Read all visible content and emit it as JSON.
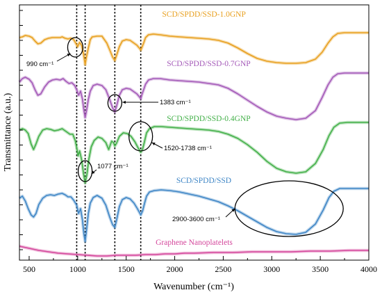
{
  "chart_data": {
    "type": "line",
    "title": "",
    "xlabel": "Wavenumber (cm⁻¹)",
    "ylabel": "Transmittance (a.u.)",
    "xlim": [
      400,
      4000
    ],
    "x_ticks": [
      "500",
      "1000",
      "1500",
      "2000",
      "2500",
      "3000",
      "3500",
      "4000"
    ],
    "grid": false,
    "reference_lines_x": [
      990,
      1077,
      1383,
      1650
    ],
    "series": [
      {
        "name": "SCD/SPDD/SSD-1.0GNP",
        "color": "#E8A020",
        "points": [
          [
            400,
            47
          ],
          [
            430,
            46
          ],
          [
            460,
            44
          ],
          [
            500,
            45
          ],
          [
            530,
            47
          ],
          [
            560,
            52
          ],
          [
            590,
            56
          ],
          [
            620,
            55
          ],
          [
            660,
            50
          ],
          [
            700,
            48
          ],
          [
            740,
            47
          ],
          [
            780,
            47
          ],
          [
            820,
            47
          ],
          [
            840,
            46
          ],
          [
            870,
            48
          ],
          [
            900,
            49
          ],
          [
            930,
            48
          ],
          [
            960,
            50
          ],
          [
            980,
            55
          ],
          [
            1000,
            60
          ],
          [
            1020,
            54
          ],
          [
            1040,
            58
          ],
          [
            1060,
            70
          ],
          [
            1077,
            86
          ],
          [
            1090,
            75
          ],
          [
            1110,
            62
          ],
          [
            1130,
            50
          ],
          [
            1150,
            46
          ],
          [
            1200,
            45
          ],
          [
            1250,
            45
          ],
          [
            1300,
            55
          ],
          [
            1340,
            68
          ],
          [
            1360,
            75
          ],
          [
            1383,
            80
          ],
          [
            1400,
            73
          ],
          [
            1430,
            60
          ],
          [
            1460,
            52
          ],
          [
            1500,
            50
          ],
          [
            1540,
            51
          ],
          [
            1580,
            55
          ],
          [
            1610,
            58
          ],
          [
            1640,
            63
          ],
          [
            1650,
            65
          ],
          [
            1660,
            62
          ],
          [
            1680,
            55
          ],
          [
            1700,
            47
          ],
          [
            1730,
            43
          ],
          [
            1780,
            42
          ],
          [
            1850,
            43
          ],
          [
            1950,
            45
          ],
          [
            2050,
            46
          ],
          [
            2150,
            47
          ],
          [
            2250,
            48
          ],
          [
            2350,
            49
          ],
          [
            2450,
            51
          ],
          [
            2550,
            55
          ],
          [
            2650,
            62
          ],
          [
            2750,
            70
          ],
          [
            2850,
            77
          ],
          [
            2950,
            81
          ],
          [
            3050,
            83
          ],
          [
            3150,
            84
          ],
          [
            3250,
            84
          ],
          [
            3350,
            83
          ],
          [
            3450,
            78
          ],
          [
            3520,
            68
          ],
          [
            3580,
            55
          ],
          [
            3630,
            46
          ],
          [
            3680,
            41
          ],
          [
            3750,
            40
          ],
          [
            3850,
            40
          ],
          [
            3950,
            40
          ],
          [
            4000,
            40
          ]
        ]
      },
      {
        "name": "SCD/SPDD/SSD-0.7GNP",
        "color": "#A45AB8",
        "points": [
          [
            400,
            111
          ],
          [
            430,
            106
          ],
          [
            460,
            104
          ],
          [
            500,
            107
          ],
          [
            530,
            112
          ],
          [
            560,
            122
          ],
          [
            590,
            130
          ],
          [
            620,
            128
          ],
          [
            660,
            118
          ],
          [
            700,
            111
          ],
          [
            740,
            108
          ],
          [
            780,
            107
          ],
          [
            820,
            108
          ],
          [
            850,
            106
          ],
          [
            880,
            110
          ],
          [
            910,
            113
          ],
          [
            940,
            112
          ],
          [
            970,
            116
          ],
          [
            990,
            122
          ],
          [
            1010,
            130
          ],
          [
            1030,
            124
          ],
          [
            1050,
            136
          ],
          [
            1065,
            152
          ],
          [
            1077,
            162
          ],
          [
            1090,
            153
          ],
          [
            1110,
            136
          ],
          [
            1130,
            124
          ],
          [
            1160,
            116
          ],
          [
            1200,
            114
          ],
          [
            1250,
            116
          ],
          [
            1290,
            122
          ],
          [
            1330,
            136
          ],
          [
            1360,
            148
          ],
          [
            1383,
            154
          ],
          [
            1400,
            146
          ],
          [
            1430,
            130
          ],
          [
            1460,
            122
          ],
          [
            1500,
            120
          ],
          [
            1540,
            121
          ],
          [
            1580,
            125
          ],
          [
            1610,
            128
          ],
          [
            1640,
            133
          ],
          [
            1650,
            135
          ],
          [
            1660,
            130
          ],
          [
            1680,
            122
          ],
          [
            1700,
            114
          ],
          [
            1730,
            108
          ],
          [
            1780,
            106
          ],
          [
            1850,
            106
          ],
          [
            1950,
            108
          ],
          [
            2050,
            109
          ],
          [
            2150,
            110
          ],
          [
            2250,
            111
          ],
          [
            2350,
            113
          ],
          [
            2450,
            115
          ],
          [
            2550,
            120
          ],
          [
            2650,
            128
          ],
          [
            2750,
            137
          ],
          [
            2850,
            146
          ],
          [
            2950,
            154
          ],
          [
            3050,
            160
          ],
          [
            3150,
            163
          ],
          [
            3250,
            165
          ],
          [
            3350,
            163
          ],
          [
            3450,
            152
          ],
          [
            3520,
            133
          ],
          [
            3580,
            115
          ],
          [
            3630,
            104
          ],
          [
            3680,
            99
          ],
          [
            3750,
            98
          ],
          [
            3850,
            98
          ],
          [
            3950,
            98
          ],
          [
            4000,
            98
          ]
        ]
      },
      {
        "name": "SCD/SPDD/SSD-0.4GNP",
        "color": "#43B049",
        "points": [
          [
            400,
            180
          ],
          [
            430,
            178
          ],
          [
            460,
            180
          ],
          [
            490,
            185
          ],
          [
            520,
            200
          ],
          [
            545,
            208
          ],
          [
            570,
            200
          ],
          [
            600,
            189
          ],
          [
            640,
            180
          ],
          [
            680,
            178
          ],
          [
            720,
            179
          ],
          [
            760,
            181
          ],
          [
            800,
            180
          ],
          [
            840,
            178
          ],
          [
            880,
            182
          ],
          [
            920,
            186
          ],
          [
            950,
            186
          ],
          [
            975,
            195
          ],
          [
            990,
            205
          ],
          [
            1005,
            217
          ],
          [
            1020,
            210
          ],
          [
            1040,
            222
          ],
          [
            1060,
            242
          ],
          [
            1077,
            256
          ],
          [
            1095,
            244
          ],
          [
            1115,
            222
          ],
          [
            1140,
            204
          ],
          [
            1170,
            195
          ],
          [
            1210,
            190
          ],
          [
            1250,
            192
          ],
          [
            1290,
            198
          ],
          [
            1320,
            208
          ],
          [
            1350,
            196
          ],
          [
            1370,
            198
          ],
          [
            1383,
            203
          ],
          [
            1400,
            199
          ],
          [
            1430,
            189
          ],
          [
            1470,
            184
          ],
          [
            1510,
            185
          ],
          [
            1550,
            189
          ],
          [
            1590,
            197
          ],
          [
            1620,
            205
          ],
          [
            1650,
            212
          ],
          [
            1670,
            207
          ],
          [
            1690,
            196
          ],
          [
            1710,
            184
          ],
          [
            1740,
            178
          ],
          [
            1790,
            175
          ],
          [
            1860,
            175
          ],
          [
            1950,
            176
          ],
          [
            2050,
            177
          ],
          [
            2150,
            178
          ],
          [
            2250,
            179
          ],
          [
            2350,
            180
          ],
          [
            2450,
            182
          ],
          [
            2550,
            186
          ],
          [
            2650,
            192
          ],
          [
            2750,
            201
          ],
          [
            2850,
            212
          ],
          [
            2950,
            225
          ],
          [
            3050,
            235
          ],
          [
            3150,
            240
          ],
          [
            3250,
            242
          ],
          [
            3350,
            240
          ],
          [
            3450,
            228
          ],
          [
            3530,
            208
          ],
          [
            3590,
            188
          ],
          [
            3640,
            176
          ],
          [
            3700,
            170
          ],
          [
            3780,
            169
          ],
          [
            3880,
            169
          ],
          [
            4000,
            169
          ]
        ]
      },
      {
        "name": "SCD/SPDD/SSD",
        "color": "#3F86C6",
        "points": [
          [
            400,
            278
          ],
          [
            430,
            275
          ],
          [
            460,
            282
          ],
          [
            490,
            293
          ],
          [
            520,
            302
          ],
          [
            545,
            305
          ],
          [
            570,
            300
          ],
          [
            600,
            287
          ],
          [
            640,
            278
          ],
          [
            680,
            274
          ],
          [
            720,
            273
          ],
          [
            760,
            274
          ],
          [
            800,
            272
          ],
          [
            840,
            271
          ],
          [
            870,
            273
          ],
          [
            900,
            276
          ],
          [
            930,
            276
          ],
          [
            960,
            281
          ],
          [
            990,
            288
          ],
          [
            1010,
            300
          ],
          [
            1030,
            293
          ],
          [
            1050,
            310
          ],
          [
            1065,
            330
          ],
          [
            1077,
            340
          ],
          [
            1090,
            325
          ],
          [
            1110,
            300
          ],
          [
            1130,
            285
          ],
          [
            1160,
            277
          ],
          [
            1200,
            274
          ],
          [
            1250,
            278
          ],
          [
            1290,
            288
          ],
          [
            1330,
            305
          ],
          [
            1360,
            316
          ],
          [
            1383,
            320
          ],
          [
            1400,
            310
          ],
          [
            1430,
            290
          ],
          [
            1460,
            280
          ],
          [
            1500,
            277
          ],
          [
            1540,
            279
          ],
          [
            1580,
            285
          ],
          [
            1615,
            293
          ],
          [
            1650,
            302
          ],
          [
            1670,
            296
          ],
          [
            1690,
            285
          ],
          [
            1710,
            275
          ],
          [
            1740,
            269
          ],
          [
            1790,
            267
          ],
          [
            1860,
            266
          ],
          [
            1950,
            267
          ],
          [
            2050,
            269
          ],
          [
            2150,
            272
          ],
          [
            2250,
            275
          ],
          [
            2350,
            279
          ],
          [
            2450,
            283
          ],
          [
            2550,
            289
          ],
          [
            2650,
            296
          ],
          [
            2750,
            304
          ],
          [
            2850,
            312
          ],
          [
            2950,
            320
          ],
          [
            3050,
            326
          ],
          [
            3150,
            329
          ],
          [
            3250,
            330
          ],
          [
            3350,
            327
          ],
          [
            3450,
            315
          ],
          [
            3530,
            295
          ],
          [
            3590,
            277
          ],
          [
            3640,
            268
          ],
          [
            3700,
            264
          ],
          [
            3780,
            264
          ],
          [
            3880,
            264
          ],
          [
            4000,
            264
          ]
        ]
      },
      {
        "name": "Graphene Nanoplatelets",
        "color": "#D4469B",
        "points": [
          [
            400,
            347
          ],
          [
            500,
            350
          ],
          [
            600,
            353
          ],
          [
            700,
            355
          ],
          [
            800,
            357
          ],
          [
            900,
            358
          ],
          [
            1000,
            359
          ],
          [
            1100,
            360
          ],
          [
            1200,
            361
          ],
          [
            1300,
            361
          ],
          [
            1400,
            360
          ],
          [
            1500,
            360
          ],
          [
            1600,
            360
          ],
          [
            1700,
            359
          ],
          [
            1800,
            359
          ],
          [
            1900,
            358
          ],
          [
            2000,
            358
          ],
          [
            2100,
            357
          ],
          [
            2200,
            357
          ],
          [
            2400,
            356
          ],
          [
            2600,
            356
          ],
          [
            2800,
            355
          ],
          [
            3000,
            355
          ],
          [
            3200,
            355
          ],
          [
            3400,
            354
          ],
          [
            3600,
            354
          ],
          [
            3800,
            353
          ],
          [
            4000,
            353
          ]
        ]
      }
    ],
    "annotations": [
      {
        "text": "990 cm⁻¹",
        "x": 990
      },
      {
        "text": "1383 cm⁻¹",
        "x": 1383
      },
      {
        "text": "1520-1738 cm⁻¹",
        "x": 1650
      },
      {
        "text": "1077 cm⁻¹",
        "x": 1077
      },
      {
        "text": "2900-3600 cm⁻¹",
        "x": 3250
      }
    ]
  }
}
